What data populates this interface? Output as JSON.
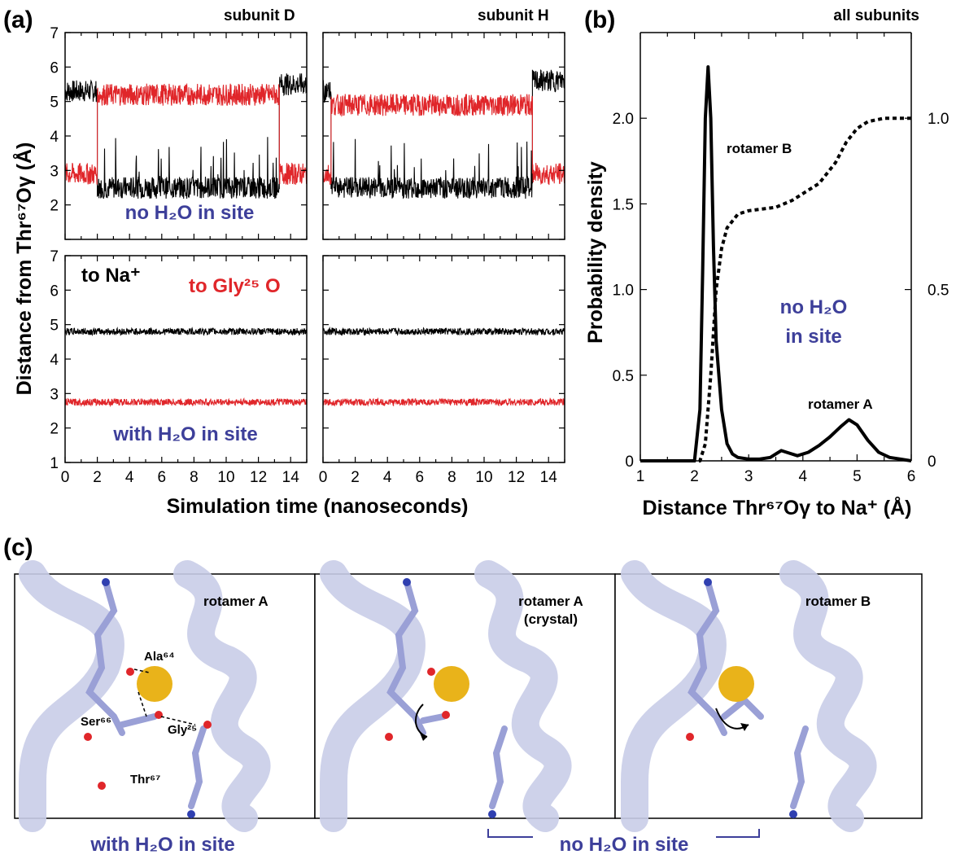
{
  "colors": {
    "black_trace": "#000000",
    "red_trace": "#e0262a",
    "site_text": "#3d3f9a",
    "helix": "#c9cde8",
    "sodium": "#e9b31a"
  },
  "panel_a": {
    "letter": "(a)",
    "subunit_left": "subunit D",
    "subunit_right": "subunit H",
    "ylabel": "Distance from Thr⁶⁷Oγ (Å)",
    "xlabel": "Simulation time (nanoseconds)",
    "y_ticks": [
      "1",
      "2",
      "3",
      "4",
      "5",
      "6",
      "7"
    ],
    "x_ticks": [
      "0",
      "2",
      "4",
      "6",
      "8",
      "10",
      "12",
      "14"
    ],
    "legend_na": "to Na⁺",
    "legend_gly": "to Gly²⁵ O",
    "top_annotation": "no H₂O in site",
    "bottom_annotation": "with H₂O in site"
  },
  "panel_b": {
    "letter": "(b)",
    "title": "all subunits",
    "ylabel": "Probability density",
    "xlabel": "Distance Thr⁶⁷Oγ to Na⁺ (Å)",
    "y_ticks": [
      "0",
      "0.5",
      "1.0",
      "1.5",
      "2.0"
    ],
    "y2_ticks": [
      "0",
      "0.5",
      "1.0"
    ],
    "x_ticks": [
      "1",
      "2",
      "3",
      "4",
      "5",
      "6"
    ],
    "rotamer_b": "rotamer B",
    "rotamer_a": "rotamer A",
    "annotation_line1": "no H₂O",
    "annotation_line2": "in site"
  },
  "panel_c": {
    "letter": "(c)",
    "box1_label": "rotamer A",
    "box2_label_line1": "rotamer A",
    "box2_label_line2": "(crystal)",
    "box3_label": "rotamer B",
    "res_ala": "Ala⁶⁴",
    "res_ser": "Ser⁶⁶",
    "res_gly": "Gly²⁵",
    "res_thr": "Thr⁶⁷",
    "bottom_left": "with H₂O in site",
    "bottom_right": "no H₂O in site"
  },
  "chart_data": [
    {
      "type": "line",
      "panel": "a-top-left",
      "title": "subunit D",
      "xlabel": "Simulation time (nanoseconds)",
      "ylabel": "Distance from Thr⁶⁷Oγ (Å)",
      "xlim": [
        0,
        15
      ],
      "ylim": [
        1,
        7
      ],
      "series": [
        {
          "name": "to Na⁺",
          "color": "#000000",
          "segments": [
            [
              0,
              2.0,
              5.3
            ],
            [
              2.0,
              13.3,
              2.5
            ],
            [
              13.3,
              15,
              5.5
            ]
          ]
        },
        {
          "name": "to Gly²⁵ O",
          "color": "#e0262a",
          "segments": [
            [
              0,
              2.0,
              2.9
            ],
            [
              2.0,
              13.3,
              5.2
            ],
            [
              13.3,
              15,
              2.9
            ]
          ]
        }
      ]
    },
    {
      "type": "line",
      "panel": "a-top-right",
      "title": "subunit H",
      "xlim": [
        0,
        15
      ],
      "ylim": [
        1,
        7
      ],
      "series": [
        {
          "name": "to Na⁺",
          "color": "#000000",
          "segments": [
            [
              0,
              0.5,
              5.3
            ],
            [
              0.5,
              13.0,
              2.5
            ],
            [
              13.0,
              15,
              5.6
            ]
          ]
        },
        {
          "name": "to Gly²⁵ O",
          "color": "#e0262a",
          "segments": [
            [
              0,
              0.5,
              2.9
            ],
            [
              0.5,
              13.0,
              4.9
            ],
            [
              13.0,
              15,
              2.9
            ]
          ]
        }
      ]
    },
    {
      "type": "line",
      "panel": "a-bottom-left",
      "xlim": [
        0,
        15
      ],
      "ylim": [
        1,
        7
      ],
      "series": [
        {
          "name": "to Na⁺",
          "color": "#000000",
          "segments": [
            [
              0,
              15,
              4.8
            ]
          ]
        },
        {
          "name": "to Gly²⁵ O",
          "color": "#e0262a",
          "segments": [
            [
              0,
              15,
              2.75
            ]
          ]
        }
      ]
    },
    {
      "type": "line",
      "panel": "a-bottom-right",
      "xlim": [
        0,
        15
      ],
      "ylim": [
        1,
        7
      ],
      "series": [
        {
          "name": "to Na⁺",
          "color": "#000000",
          "segments": [
            [
              0,
              15,
              4.8
            ]
          ]
        },
        {
          "name": "to Gly²⁵ O",
          "color": "#e0262a",
          "segments": [
            [
              0,
              15,
              2.75
            ]
          ]
        }
      ]
    },
    {
      "type": "line",
      "panel": "b",
      "title": "all subunits",
      "xlabel": "Distance Thr⁶⁷Oγ to Na⁺ (Å)",
      "ylabel": "Probability density",
      "xlim": [
        1,
        6
      ],
      "ylim": [
        0,
        2.5
      ],
      "y2lim": [
        0,
        1.25
      ],
      "series": [
        {
          "style": "solid",
          "x": [
            1.0,
            2.0,
            2.1,
            2.15,
            2.2,
            2.25,
            2.3,
            2.35,
            2.4,
            2.5,
            2.6,
            2.7,
            2.8,
            3.0,
            3.2,
            3.4,
            3.5,
            3.6,
            3.7,
            3.9,
            4.1,
            4.3,
            4.5,
            4.7,
            4.85,
            5.0,
            5.2,
            5.4,
            5.6,
            5.8,
            6.0
          ],
          "y": [
            0,
            0.0,
            0.3,
            1.1,
            2.0,
            2.3,
            2.0,
            1.25,
            0.7,
            0.3,
            0.1,
            0.04,
            0.02,
            0.01,
            0.01,
            0.02,
            0.04,
            0.06,
            0.05,
            0.03,
            0.05,
            0.09,
            0.14,
            0.2,
            0.24,
            0.21,
            0.12,
            0.05,
            0.02,
            0.01,
            0.0
          ]
        },
        {
          "style": "dotted",
          "axis": "right",
          "x": [
            1.0,
            2.1,
            2.2,
            2.3,
            2.4,
            2.5,
            2.6,
            2.8,
            3.0,
            3.5,
            3.8,
            4.0,
            4.3,
            4.6,
            4.8,
            5.0,
            5.2,
            5.5,
            6.0
          ],
          "y": [
            0,
            0.0,
            0.05,
            0.25,
            0.5,
            0.62,
            0.68,
            0.72,
            0.73,
            0.74,
            0.76,
            0.78,
            0.81,
            0.87,
            0.93,
            0.97,
            0.99,
            1.0,
            1.0
          ]
        }
      ]
    }
  ]
}
